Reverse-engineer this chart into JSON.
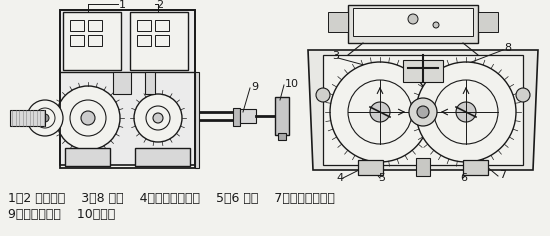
{
  "bg_color": "#f2f2ee",
  "line_color": "#1a1a1a",
  "caption_line1": "1、2 微动开关    3、8 凸轮    4、开向调节螺钉    5、6 支架    7、关向调节螺钉",
  "caption_line2": "9、转矩传动轴    10、曲拐",
  "caption_fontsize": 9,
  "figsize": [
    5.5,
    2.36
  ],
  "dpi": 100
}
